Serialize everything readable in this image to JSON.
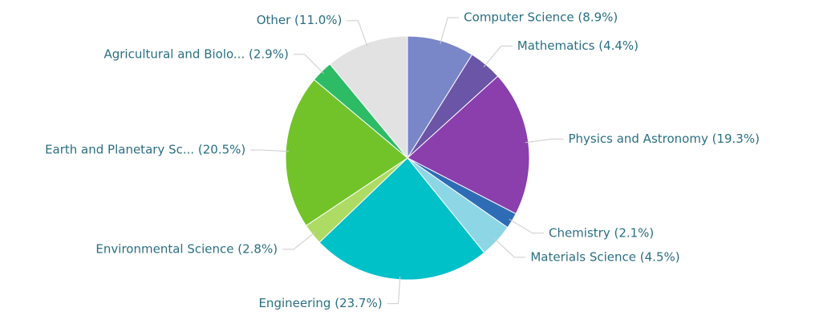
{
  "chart_data": {
    "type": "pie",
    "categories": [
      "Computer Science (8.9%)",
      "Mathematics (4.4%)",
      "Physics and Astronomy (19.3%)",
      "Chemistry (2.1%)",
      "Materials Science (4.5%)",
      "Engineering (23.7%)",
      "Environmental Science (2.8%)",
      "Earth and Planetary Sc... (20.5%)",
      "Agricultural and Biolo... (2.9%)",
      "Other (11.0%)"
    ],
    "values": [
      8.9,
      4.4,
      19.3,
      2.1,
      4.5,
      23.7,
      2.8,
      20.5,
      2.9,
      11.0
    ],
    "colors": [
      "#7986c8",
      "#6a55a6",
      "#8a3fad",
      "#2e6db5",
      "#8dd6e6",
      "#00c0c8",
      "#aedb64",
      "#72c32a",
      "#2dbb66",
      "#e2e2e2"
    ]
  }
}
